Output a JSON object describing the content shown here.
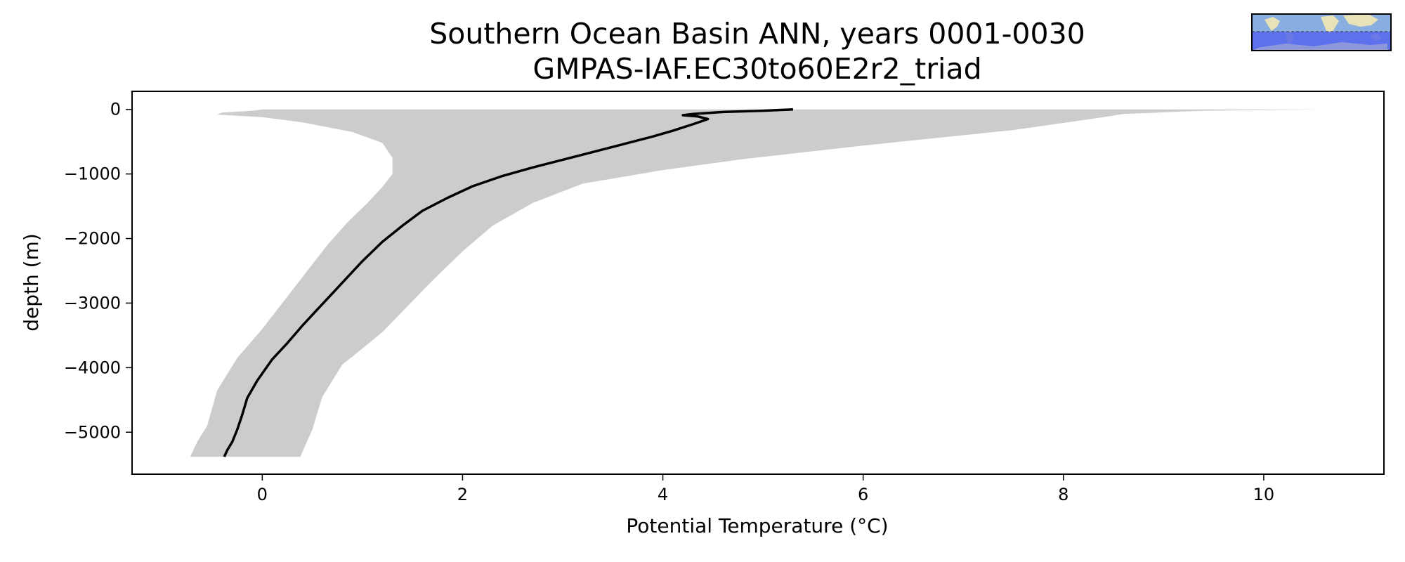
{
  "chart_data": {
    "type": "line",
    "title": "Southern Ocean Basin ANN, years 0001-0030",
    "subtitle": "GMPAS-IAF.EC30to60E2r2_triad",
    "xlabel": "Potential Temperature (°C)",
    "ylabel": "depth (m)",
    "xlim": [
      -1.3,
      11.2
    ],
    "ylim": [
      -5650,
      280
    ],
    "xticks": [
      0,
      2,
      4,
      6,
      8,
      10
    ],
    "yticks": [
      0,
      -1000,
      -2000,
      -3000,
      -4000,
      -5000
    ],
    "xtick_labels": [
      "0",
      "2",
      "4",
      "6",
      "8",
      "10"
    ],
    "ytick_labels": [
      "0",
      "−1000",
      "−2000",
      "−3000",
      "−4000",
      "−5000"
    ],
    "grid": false,
    "series": [
      {
        "role": "mean",
        "color": "#000000",
        "points": [
          [
            5.3,
            0
          ],
          [
            5.0,
            -20
          ],
          [
            4.6,
            -40
          ],
          [
            4.3,
            -70
          ],
          [
            4.2,
            -90
          ],
          [
            4.35,
            -110
          ],
          [
            4.45,
            -150
          ],
          [
            4.3,
            -230
          ],
          [
            4.1,
            -330
          ],
          [
            3.9,
            -420
          ],
          [
            3.6,
            -540
          ],
          [
            3.3,
            -660
          ],
          [
            3.0,
            -780
          ],
          [
            2.7,
            -900
          ],
          [
            2.4,
            -1030
          ],
          [
            2.1,
            -1190
          ],
          [
            1.85,
            -1370
          ],
          [
            1.6,
            -1570
          ],
          [
            1.4,
            -1800
          ],
          [
            1.2,
            -2050
          ],
          [
            1.0,
            -2350
          ],
          [
            0.85,
            -2600
          ],
          [
            0.7,
            -2850
          ],
          [
            0.55,
            -3100
          ],
          [
            0.4,
            -3350
          ],
          [
            0.25,
            -3620
          ],
          [
            0.1,
            -3870
          ],
          [
            -0.05,
            -4200
          ],
          [
            -0.15,
            -4470
          ],
          [
            -0.2,
            -4730
          ],
          [
            -0.25,
            -4960
          ],
          [
            -0.3,
            -5150
          ],
          [
            -0.35,
            -5280
          ],
          [
            -0.38,
            -5380
          ]
        ]
      }
    ],
    "band": {
      "color": "#cccccc",
      "min": [
        [
          0.0,
          0
        ],
        [
          -0.1,
          -20
        ],
        [
          -0.4,
          -50
        ],
        [
          -0.45,
          -80
        ],
        [
          0.0,
          -120
        ],
        [
          0.4,
          -200
        ],
        [
          0.9,
          -350
        ],
        [
          1.2,
          -520
        ],
        [
          1.3,
          -750
        ],
        [
          1.3,
          -1000
        ],
        [
          1.2,
          -1200
        ],
        [
          1.05,
          -1450
        ],
        [
          0.85,
          -1750
        ],
        [
          0.65,
          -2100
        ],
        [
          0.45,
          -2500
        ],
        [
          0.25,
          -2900
        ],
        [
          0.0,
          -3400
        ],
        [
          -0.25,
          -3850
        ],
        [
          -0.45,
          -4350
        ],
        [
          -0.55,
          -4900
        ],
        [
          -0.65,
          -5150
        ],
        [
          -0.72,
          -5380
        ]
      ],
      "max": [
        [
          10.6,
          0
        ],
        [
          9.4,
          -20
        ],
        [
          8.6,
          -70
        ],
        [
          8.4,
          -120
        ],
        [
          7.5,
          -320
        ],
        [
          6.0,
          -560
        ],
        [
          4.8,
          -770
        ],
        [
          4.0,
          -940
        ],
        [
          3.2,
          -1150
        ],
        [
          2.7,
          -1450
        ],
        [
          2.3,
          -1800
        ],
        [
          2.0,
          -2200
        ],
        [
          1.7,
          -2650
        ],
        [
          1.45,
          -3050
        ],
        [
          1.2,
          -3450
        ],
        [
          0.9,
          -3830
        ],
        [
          0.8,
          -3950
        ],
        [
          0.7,
          -4200
        ],
        [
          0.6,
          -4450
        ],
        [
          0.55,
          -4700
        ],
        [
          0.5,
          -4960
        ],
        [
          0.45,
          -5130
        ],
        [
          0.38,
          -5380
        ]
      ]
    },
    "inset_map": {
      "position": "top-right",
      "highlight_color": "#5566ee",
      "ocean_color": "#8aaee0",
      "land_color": "#e8e2b8"
    }
  }
}
